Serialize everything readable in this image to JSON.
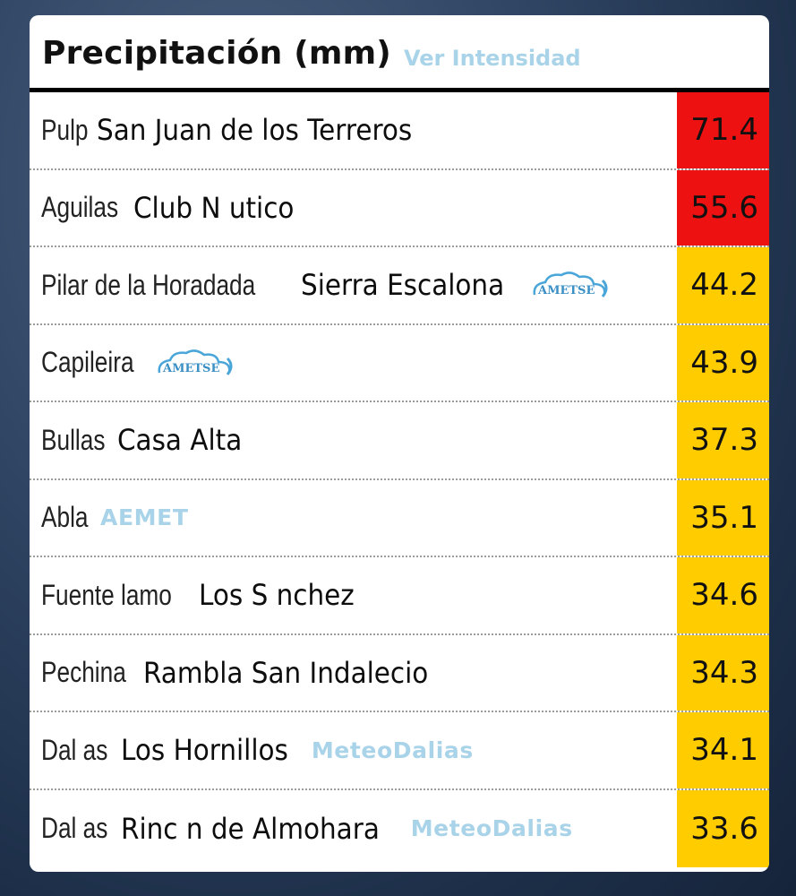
{
  "header": {
    "title": "Precipitación (mm)",
    "link_label": "Ver Intensidad"
  },
  "colors": {
    "red": "#ee1111",
    "yellow": "#ffcc00",
    "link": "#a9d3e8"
  },
  "rows": [
    {
      "town": "Pulp",
      "station": "San Juan de los Terreros",
      "badge": "",
      "logo": "",
      "value": "71.4",
      "level": "red"
    },
    {
      "town": "Aguilas",
      "station": "Club N utico",
      "badge": "",
      "logo": "",
      "value": "55.6",
      "level": "red"
    },
    {
      "town": "Pilar de la Horadada",
      "station": "Sierra Escalona",
      "badge": "",
      "logo": "ametse-logo",
      "logo_text": "AMETSE",
      "value": "44.2",
      "level": "yellow"
    },
    {
      "town": "Capileira",
      "station": "",
      "badge": "",
      "logo": "ametse-logo",
      "logo_text": "AMETSE",
      "value": "43.9",
      "level": "yellow"
    },
    {
      "town": "Bullas",
      "station": "Casa Alta",
      "badge": "",
      "logo": "",
      "value": "37.3",
      "level": "yellow"
    },
    {
      "town": "Abla",
      "station": "",
      "badge": "AEMET",
      "logo": "",
      "value": "35.1",
      "level": "yellow"
    },
    {
      "town": "Fuente lamo",
      "station": "Los S nchez",
      "badge": "",
      "logo": "",
      "value": "34.6",
      "level": "yellow"
    },
    {
      "town": "Pechina",
      "station": "Rambla San Indalecio",
      "badge": "",
      "logo": "",
      "value": "34.3",
      "level": "yellow"
    },
    {
      "town": "Dal as",
      "station": "Los Hornillos",
      "badge": "MeteoDalias",
      "logo": "",
      "value": "34.1",
      "level": "yellow"
    },
    {
      "town": "Dal as",
      "station": "Rinc n de Almohara",
      "badge": "MeteoDalias",
      "logo": "",
      "value": "33.6",
      "level": "yellow"
    }
  ]
}
